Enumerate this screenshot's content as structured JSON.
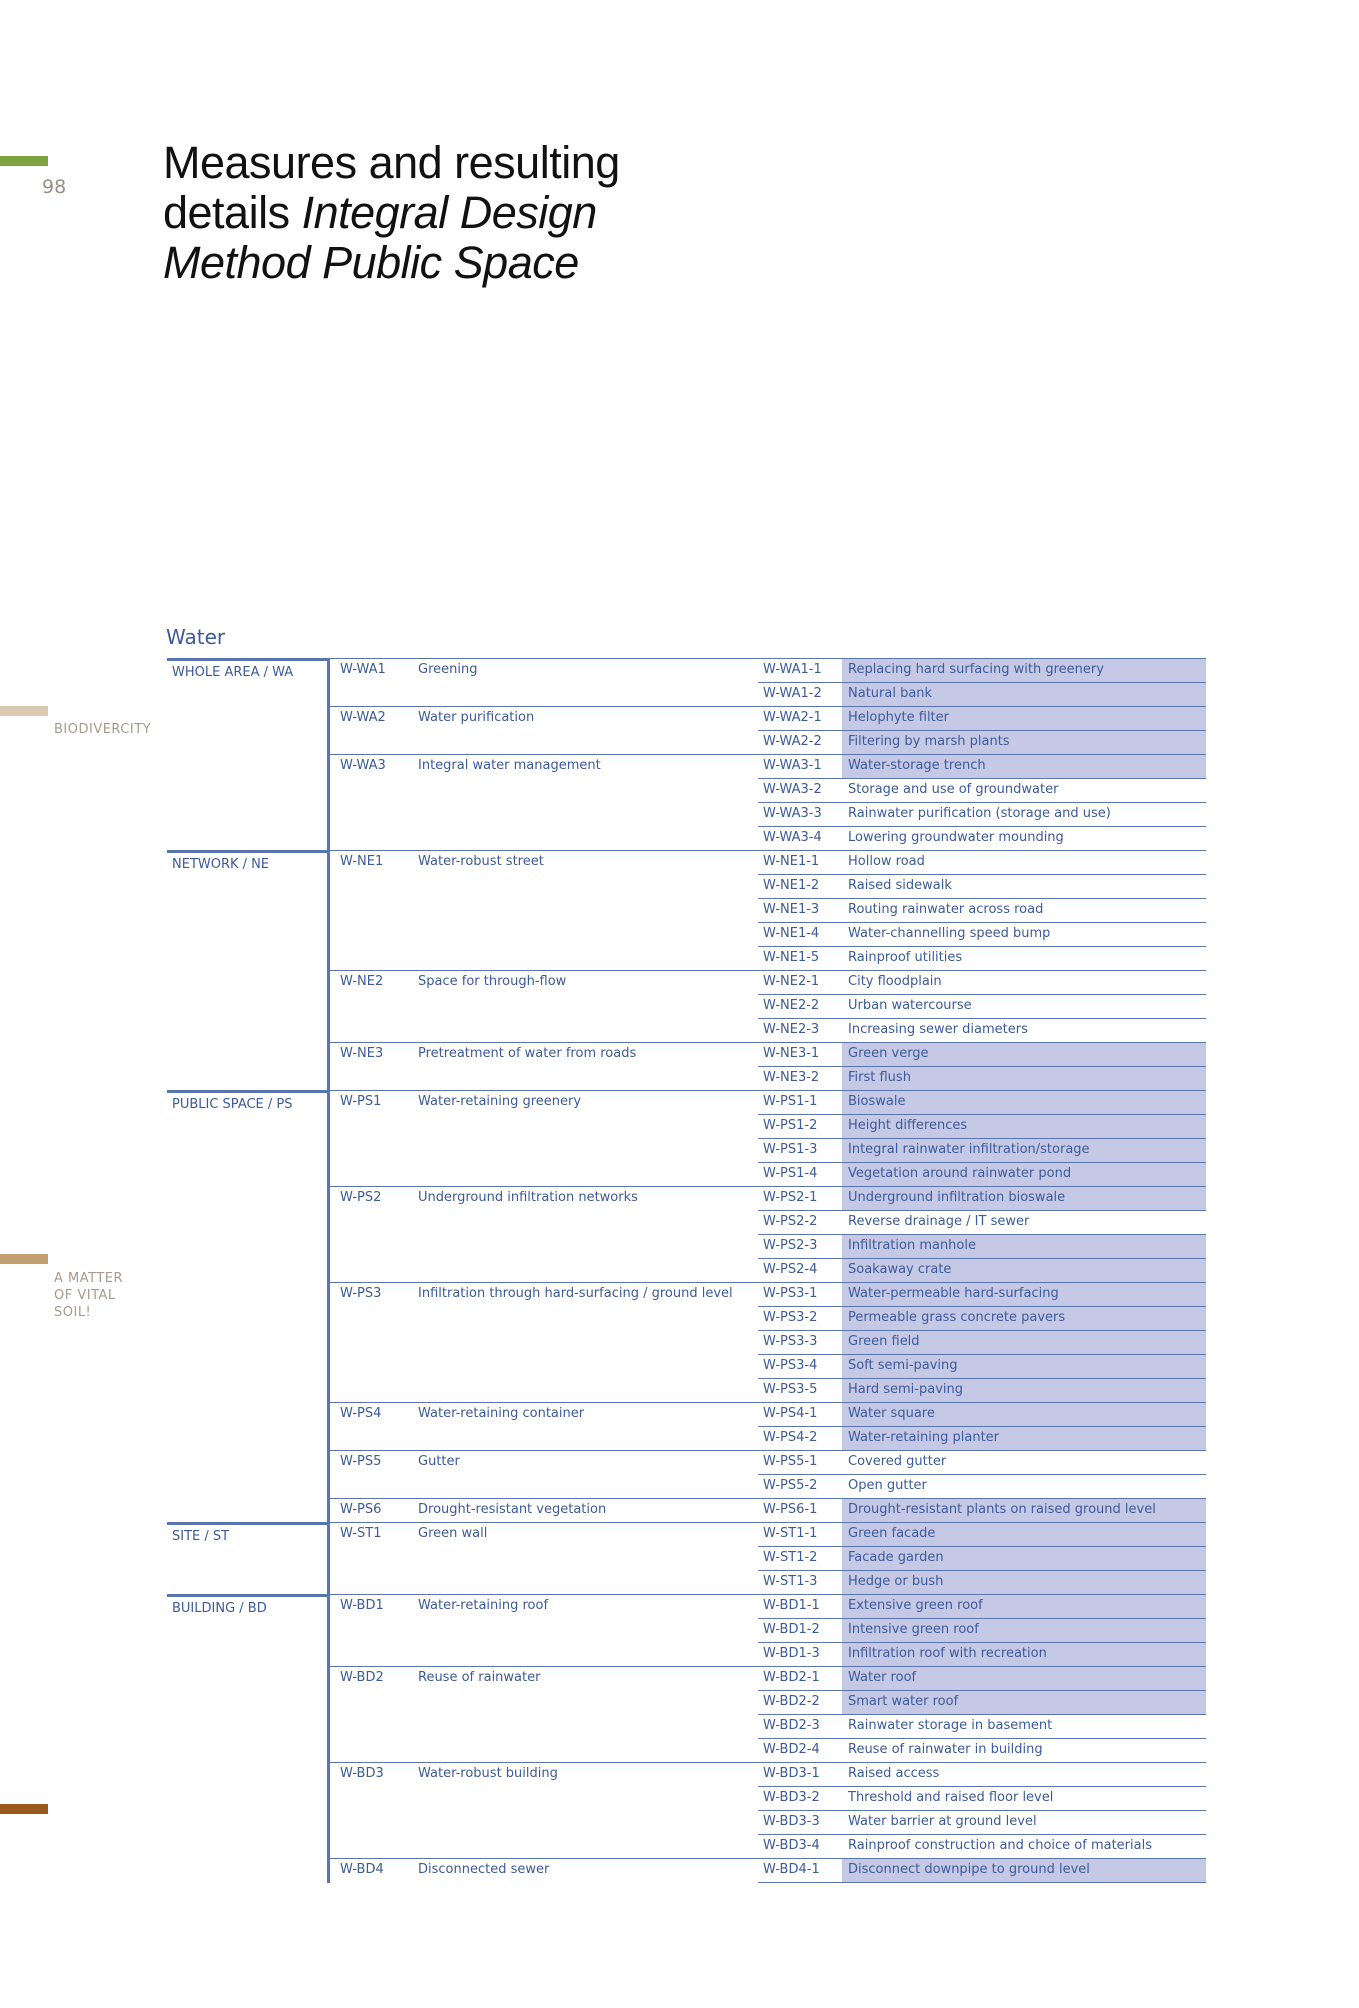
{
  "page_number": "98",
  "title": {
    "line1": "Measures and resulting",
    "line2_regular": "details",
    "line2_italic": "Integral Design",
    "line3": "Method Public Space"
  },
  "side_labels": [
    "BIODIVERCITY",
    "A MATTER OF VITAL SOIL!"
  ],
  "section": "Water",
  "scales": [
    {
      "name": "WHOLE AREA /  WA",
      "measures": [
        {
          "code": "W-WA1",
          "name": "Greening",
          "details": [
            {
              "code": "W-WA1-1",
              "name": "Replacing hard surfacing with greenery",
              "highlighted": true
            },
            {
              "code": "W-WA1-2",
              "name": "Natural bank",
              "highlighted": true
            }
          ]
        },
        {
          "code": "W-WA2",
          "name": "Water purification",
          "details": [
            {
              "code": "W-WA2-1",
              "name": "Helophyte filter",
              "highlighted": true
            },
            {
              "code": "W-WA2-2",
              "name": "Filtering by marsh plants",
              "highlighted": true
            }
          ]
        },
        {
          "code": "W-WA3",
          "name": "Integral water management",
          "details": [
            {
              "code": "W-WA3-1",
              "name": "Water-storage trench",
              "highlighted": true
            },
            {
              "code": "W-WA3-2",
              "name": "Storage and use of groundwater",
              "highlighted": false
            },
            {
              "code": "W-WA3-3",
              "name": "Rainwater purification (storage and use)",
              "highlighted": false
            },
            {
              "code": "W-WA3-4",
              "name": "Lowering groundwater mounding",
              "highlighted": false
            }
          ]
        }
      ]
    },
    {
      "name": "NETWORK / NE",
      "measures": [
        {
          "code": "W-NE1",
          "name": "Water-robust street",
          "details": [
            {
              "code": "W-NE1-1",
              "name": "Hollow road",
              "highlighted": false
            },
            {
              "code": "W-NE1-2",
              "name": "Raised sidewalk",
              "highlighted": false
            },
            {
              "code": "W-NE1-3",
              "name": "Routing rainwater across road",
              "highlighted": false
            },
            {
              "code": "W-NE1-4",
              "name": "Water-channelling speed bump",
              "highlighted": false
            },
            {
              "code": "W-NE1-5",
              "name": "Rainproof utilities",
              "highlighted": false
            }
          ]
        },
        {
          "code": "W-NE2",
          "name": "Space for through-flow",
          "details": [
            {
              "code": "W-NE2-1",
              "name": "City floodplain",
              "highlighted": false
            },
            {
              "code": "W-NE2-2",
              "name": "Urban watercourse",
              "highlighted": false
            },
            {
              "code": "W-NE2-3",
              "name": "Increasing sewer diameters",
              "highlighted": false
            }
          ]
        },
        {
          "code": "W-NE3",
          "name": "Pretreatment of water from roads",
          "details": [
            {
              "code": "W-NE3-1",
              "name": "Green verge",
              "highlighted": true
            },
            {
              "code": "W-NE3-2",
              "name": "First flush",
              "highlighted": true
            }
          ]
        }
      ]
    },
    {
      "name": "PUBLIC SPACE / PS",
      "measures": [
        {
          "code": "W-PS1",
          "name": "Water-retaining greenery",
          "details": [
            {
              "code": "W-PS1-1",
              "name": "Bioswale",
              "highlighted": true
            },
            {
              "code": "W-PS1-2",
              "name": "Height differences",
              "highlighted": true
            },
            {
              "code": "W-PS1-3",
              "name": "Integral rainwater infiltration/storage",
              "highlighted": true
            },
            {
              "code": "W-PS1-4",
              "name": "Vegetation around rainwater pond",
              "highlighted": true
            }
          ]
        },
        {
          "code": "W-PS2",
          "name": "Underground infiltration networks",
          "details": [
            {
              "code": "W-PS2-1",
              "name": "Underground infiltration bioswale",
              "highlighted": true
            },
            {
              "code": "W-PS2-2",
              "name": "Reverse drainage / IT sewer",
              "highlighted": false
            },
            {
              "code": "W-PS2-3",
              "name": "Infiltration manhole",
              "highlighted": true
            },
            {
              "code": "W-PS2-4",
              "name": "Soakaway crate",
              "highlighted": true
            }
          ]
        },
        {
          "code": "W-PS3",
          "name": "Infiltration through hard-surfacing / ground level",
          "details": [
            {
              "code": "W-PS3-1",
              "name": "Water-permeable hard-surfacing",
              "highlighted": true
            },
            {
              "code": "W-PS3-2",
              "name": "Permeable grass concrete pavers",
              "highlighted": true
            },
            {
              "code": "W-PS3-3",
              "name": "Green field",
              "highlighted": true
            },
            {
              "code": "W-PS3-4",
              "name": "Soft semi-paving",
              "highlighted": true
            },
            {
              "code": "W-PS3-5",
              "name": "Hard semi-paving",
              "highlighted": true
            }
          ]
        },
        {
          "code": "W-PS4",
          "name": "Water-retaining container",
          "details": [
            {
              "code": "W-PS4-1",
              "name": "Water square",
              "highlighted": true
            },
            {
              "code": "W-PS4-2",
              "name": "Water-retaining planter",
              "highlighted": true
            }
          ]
        },
        {
          "code": "W-PS5",
          "name": "Gutter",
          "details": [
            {
              "code": "W-PS5-1",
              "name": "Covered gutter",
              "highlighted": false
            },
            {
              "code": "W-PS5-2",
              "name": "Open gutter",
              "highlighted": false
            }
          ]
        },
        {
          "code": "W-PS6",
          "name": "Drought-resistant vegetation",
          "details": [
            {
              "code": "W-PS6-1",
              "name": "Drought-resistant plants on raised ground level",
              "highlighted": true
            }
          ]
        }
      ]
    },
    {
      "name": "SITE / ST",
      "measures": [
        {
          "code": "W-ST1",
          "name": "Green wall",
          "details": [
            {
              "code": "W-ST1-1",
              "name": "Green facade",
              "highlighted": true
            },
            {
              "code": "W-ST1-2",
              "name": "Facade garden",
              "highlighted": true
            },
            {
              "code": "W-ST1-3",
              "name": "Hedge or bush",
              "highlighted": true
            }
          ]
        }
      ]
    },
    {
      "name": "BUILDING / BD",
      "measures": [
        {
          "code": "W-BD1",
          "name": "Water-retaining roof",
          "details": [
            {
              "code": "W-BD1-1",
              "name": "Extensive green roof",
              "highlighted": true
            },
            {
              "code": "W-BD1-2",
              "name": "Intensive green roof",
              "highlighted": true
            },
            {
              "code": "W-BD1-3",
              "name": "Infiltration roof with recreation",
              "highlighted": true
            }
          ]
        },
        {
          "code": "W-BD2",
          "name": "Reuse of rainwater",
          "details": [
            {
              "code": "W-BD2-1",
              "name": "Water roof",
              "highlighted": true
            },
            {
              "code": "W-BD2-2",
              "name": "Smart water roof",
              "highlighted": true
            },
            {
              "code": "W-BD2-3",
              "name": "Rainwater storage in basement",
              "highlighted": false
            },
            {
              "code": "W-BD2-4",
              "name": "Reuse of rainwater in building",
              "highlighted": false
            }
          ]
        },
        {
          "code": "W-BD3",
          "name": "Water-robust building",
          "details": [
            {
              "code": "W-BD3-1",
              "name": "Raised access",
              "highlighted": false
            },
            {
              "code": "W-BD3-2",
              "name": "Threshold and raised floor level",
              "highlighted": false
            },
            {
              "code": "W-BD3-3",
              "name": "Water barrier at ground level",
              "highlighted": false
            },
            {
              "code": "W-BD3-4",
              "name": "Rainproof construction and choice of materials",
              "highlighted": false
            }
          ]
        },
        {
          "code": "W-BD4",
          "name": "Disconnected sewer",
          "details": [
            {
              "code": "W-BD4-1",
              "name": "Disconnect downpipe to ground level",
              "highlighted": true
            }
          ]
        }
      ]
    }
  ]
}
